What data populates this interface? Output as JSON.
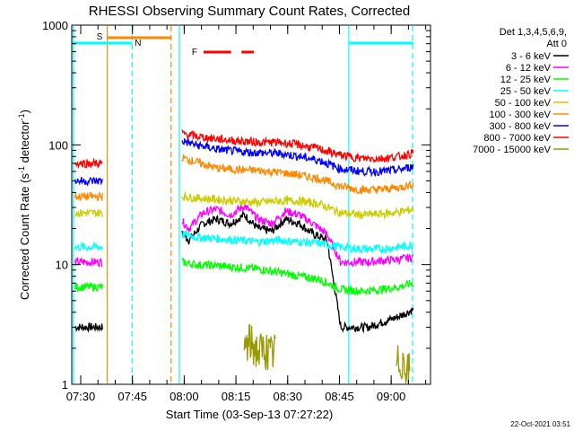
{
  "chart_data": {
    "type": "line",
    "title": "RHESSI Observing Summary Count Rates, Corrected",
    "xlabel": "Start Time (03-Sep-13 07:27:22)",
    "ylabel": "Corrected Count Rate (s",
    "ylabel_sup1": "-1",
    "ylabel_mid": " detector",
    "ylabel_sup2": "-1",
    "ylabel_end": ")",
    "yscale": "log",
    "ylim": [
      1,
      1000
    ],
    "y_ticks": [
      {
        "value": 1,
        "label": "1"
      },
      {
        "value": 10,
        "label": "10"
      },
      {
        "value": 100,
        "label": "100"
      },
      {
        "value": 1000,
        "label": "1000"
      }
    ],
    "xlim_minutes": [
      0,
      104
    ],
    "x_ticks": [
      {
        "minute": 2.6,
        "label": "07:30"
      },
      {
        "minute": 17.6,
        "label": "07:45"
      },
      {
        "minute": 32.6,
        "label": "08:00"
      },
      {
        "minute": 47.6,
        "label": "08:15"
      },
      {
        "minute": 62.6,
        "label": "08:30"
      },
      {
        "minute": 77.6,
        "label": "08:45"
      },
      {
        "minute": 92.6,
        "label": "09:00"
      }
    ],
    "legend_header": [
      "Det 1,3,4,5,6,9,",
      "Att 0"
    ],
    "series": [
      {
        "name": "3 - 6 keV",
        "color": "#000000",
        "x": [
          1,
          9,
          32,
          34,
          38,
          42,
          46,
          50,
          54,
          58,
          62,
          66,
          70,
          74,
          78,
          82,
          86,
          90,
          94,
          99
        ],
        "values": [
          3,
          3,
          18,
          16,
          22,
          24,
          22,
          26,
          20,
          19,
          24,
          22,
          18,
          16,
          3,
          3,
          3,
          3.3,
          3.6,
          4.2
        ]
      },
      {
        "name": "6 - 12 keV",
        "color": "#ff00ff",
        "x": [
          1,
          9,
          32,
          34,
          38,
          42,
          46,
          50,
          54,
          58,
          62,
          66,
          70,
          74,
          78,
          82,
          86,
          90,
          94,
          99
        ],
        "values": [
          10.5,
          10.5,
          23,
          20,
          27,
          29,
          26,
          31,
          24,
          22,
          28,
          26,
          22,
          18,
          10.5,
          10.5,
          10.5,
          10.8,
          11,
          11.5
        ]
      },
      {
        "name": "12 - 25 keV",
        "color": "#00ff00",
        "x": [
          1,
          9,
          32,
          36,
          42,
          48,
          54,
          60,
          66,
          72,
          78,
          84,
          90,
          95,
          99
        ],
        "values": [
          6.5,
          6.5,
          10.5,
          10,
          9.8,
          9.5,
          9.2,
          8.6,
          8,
          7.5,
          6.2,
          6,
          6.2,
          6.5,
          7
        ]
      },
      {
        "name": "25 - 50 keV",
        "color": "#00ffff",
        "x": [
          1,
          9,
          32,
          36,
          42,
          48,
          54,
          60,
          66,
          72,
          78,
          84,
          90,
          95,
          99
        ],
        "values": [
          14,
          14,
          18,
          17,
          16.5,
          16,
          15.5,
          16,
          15.5,
          15,
          14,
          13.5,
          13.5,
          14,
          14.5
        ]
      },
      {
        "name": "50 - 100 keV",
        "color": "#cccc00",
        "x": [
          1,
          9,
          32,
          36,
          42,
          48,
          54,
          60,
          66,
          72,
          78,
          84,
          90,
          95,
          99
        ],
        "values": [
          27,
          27,
          37,
          36,
          35,
          34,
          33,
          34,
          34,
          32,
          27,
          26,
          26.5,
          27.5,
          29
        ]
      },
      {
        "name": "100 - 300 keV",
        "color": "#ff8800",
        "x": [
          1,
          9,
          32,
          36,
          42,
          48,
          54,
          60,
          66,
          72,
          78,
          84,
          90,
          95,
          99
        ],
        "values": [
          37,
          37,
          78,
          72,
          64,
          62,
          61,
          59,
          56,
          52,
          45,
          42,
          42.5,
          44,
          47
        ]
      },
      {
        "name": "300 - 800 keV",
        "color": "#0000ff",
        "x": [
          1,
          9,
          32,
          36,
          42,
          48,
          54,
          60,
          66,
          72,
          78,
          84,
          90,
          95,
          99
        ],
        "values": [
          50,
          50,
          108,
          100,
          92,
          88,
          86,
          85,
          80,
          74,
          63,
          60,
          60,
          62,
          66
        ]
      },
      {
        "name": "800 - 7000 keV",
        "color": "#ff0000",
        "x": [
          1,
          9,
          32,
          36,
          42,
          48,
          54,
          60,
          66,
          72,
          78,
          84,
          90,
          95,
          99
        ],
        "values": [
          70,
          70,
          125,
          118,
          112,
          108,
          105,
          105,
          100,
          92,
          82,
          77,
          77,
          80,
          85
        ]
      },
      {
        "name": "7000 - 15000 keV",
        "color": "#999900",
        "x": [
          50,
          51.5,
          53,
          54.5,
          56,
          57.5,
          59,
          94,
          96,
          98
        ],
        "values": [
          2,
          2.2,
          2,
          1.8,
          2,
          1.7,
          1.9,
          1.4,
          1.6,
          1.2
        ]
      }
    ],
    "annotations": {
      "S": {
        "label": "S",
        "color": "#ff8800",
        "start_minute": 10.3,
        "end_minute": 28.8
      },
      "N": {
        "label": "N",
        "color": "#00ffff",
        "segments": [
          [
            0,
            17.5
          ],
          [
            80.5,
            99
          ]
        ]
      },
      "F": {
        "label": "F",
        "color": "#ff0000",
        "segments": [
          [
            38.2,
            46.2
          ],
          [
            49.2,
            52.8
          ]
        ]
      }
    },
    "vertical_markers": [
      {
        "minute": 0.5,
        "color": "#00ffff",
        "style": "solid"
      },
      {
        "minute": 10.3,
        "color": "#ff8800",
        "style": "solid"
      },
      {
        "minute": 17.5,
        "color": "#00ffff",
        "style": "dashed"
      },
      {
        "minute": 28.8,
        "color": "#ff8800",
        "style": "dashed"
      },
      {
        "minute": 31.2,
        "color": "#00ffff",
        "style": "solid"
      },
      {
        "minute": 80.3,
        "color": "#00ffff",
        "style": "solid"
      },
      {
        "minute": 98.8,
        "color": "#00ffff",
        "style": "dashed"
      }
    ]
  },
  "footer": {
    "timestamp": "22-Oct-2021 03:51"
  }
}
